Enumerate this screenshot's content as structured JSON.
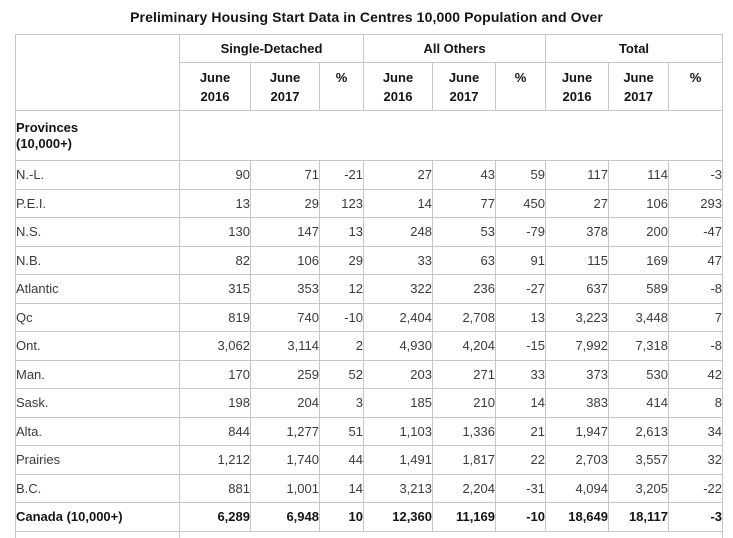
{
  "title": "Preliminary Housing Start Data in Centres 10,000 Population and Over",
  "chart_data": {
    "type": "table",
    "title": "Preliminary Housing Start Data in Centres 10,000 Population and Over",
    "column_groups": [
      {
        "label": "Single-Detached",
        "span": 3
      },
      {
        "label": "All Others",
        "span": 3
      },
      {
        "label": "Total",
        "span": 3
      }
    ],
    "sub_columns": [
      "June\n2016",
      "June\n2017",
      "%",
      "June\n2016",
      "June\n2017",
      "%",
      "June\n2016",
      "June\n2017",
      "%"
    ],
    "section_header": "Provinces\n(10,000+)",
    "rows": [
      {
        "label": "N.-L.",
        "values": [
          "90",
          "71",
          "-21",
          "27",
          "43",
          "59",
          "117",
          "114",
          "-3"
        ]
      },
      {
        "label": "P.E.I.",
        "values": [
          "13",
          "29",
          "123",
          "14",
          "77",
          "450",
          "27",
          "106",
          "293"
        ]
      },
      {
        "label": "N.S.",
        "values": [
          "130",
          "147",
          "13",
          "248",
          "53",
          "-79",
          "378",
          "200",
          "-47"
        ]
      },
      {
        "label": "N.B.",
        "values": [
          "82",
          "106",
          "29",
          "33",
          "63",
          "91",
          "115",
          "169",
          "47"
        ]
      },
      {
        "label": "Atlantic",
        "values": [
          "315",
          "353",
          "12",
          "322",
          "236",
          "-27",
          "637",
          "589",
          "-8"
        ]
      },
      {
        "label": "Qc",
        "values": [
          "819",
          "740",
          "-10",
          "2,404",
          "2,708",
          "13",
          "3,223",
          "3,448",
          "7"
        ]
      },
      {
        "label": "Ont.",
        "values": [
          "3,062",
          "3,114",
          "2",
          "4,930",
          "4,204",
          "-15",
          "7,992",
          "7,318",
          "-8"
        ]
      },
      {
        "label": "Man.",
        "values": [
          "170",
          "259",
          "52",
          "203",
          "271",
          "33",
          "373",
          "530",
          "42"
        ]
      },
      {
        "label": "Sask.",
        "values": [
          "198",
          "204",
          "3",
          "185",
          "210",
          "14",
          "383",
          "414",
          "8"
        ]
      },
      {
        "label": "Alta.",
        "values": [
          "844",
          "1,277",
          "51",
          "1,103",
          "1,336",
          "21",
          "1,947",
          "2,613",
          "34"
        ]
      },
      {
        "label": "Prairies",
        "values": [
          "1,212",
          "1,740",
          "44",
          "1,491",
          "1,817",
          "22",
          "2,703",
          "3,557",
          "32"
        ]
      },
      {
        "label": "B.C.",
        "values": [
          "881",
          "1,001",
          "14",
          "3,213",
          "2,204",
          "-31",
          "4,094",
          "3,205",
          "-22"
        ]
      }
    ],
    "totals_row": {
      "label": "Canada (10,000+)",
      "values": [
        "6,289",
        "6,948",
        "10",
        "12,360",
        "11,169",
        "-10",
        "18,649",
        "18,117",
        "-3"
      ]
    }
  }
}
